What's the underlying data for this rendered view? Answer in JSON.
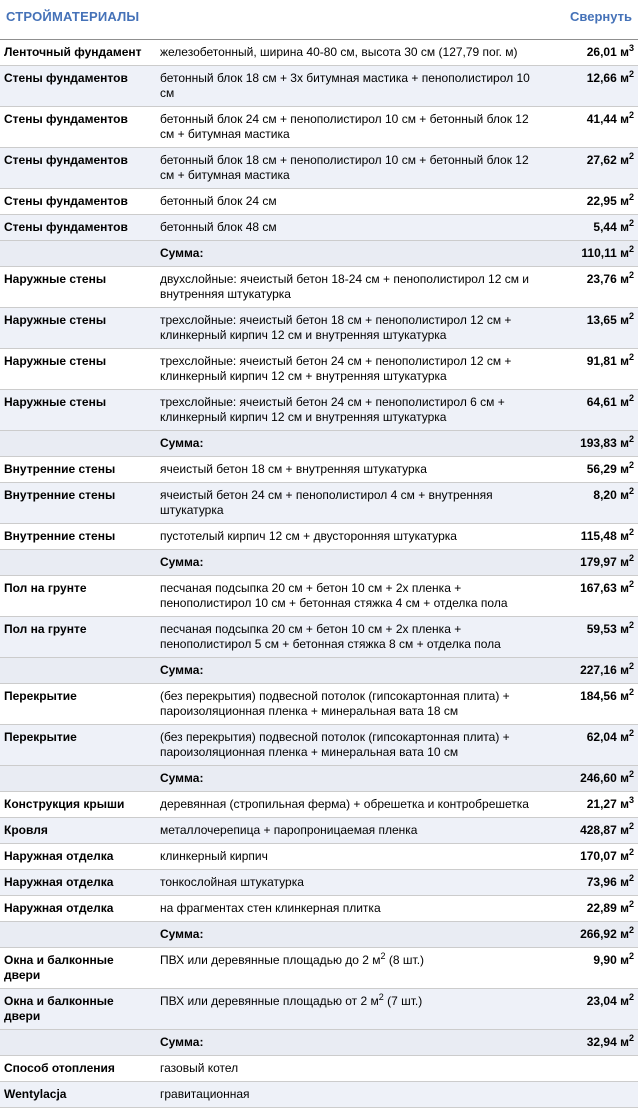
{
  "header": {
    "title": "СТРОЙМАТЕРИАЛЫ",
    "collapse_label": "Свернуть"
  },
  "colors": {
    "accent_blue": "#4572b8",
    "stripe_bg": "#eef1f8",
    "sum_bg": "#e9ecf3",
    "top_border": "#8f8f8f",
    "row_border": "#cccccc"
  },
  "table": {
    "rows": [
      {
        "type": "data",
        "category": "Ленточный фундамент",
        "description": "железобетонный, ширина 40-80 см, высота 30 см (127,79 пог. м)",
        "value": "26,01 м³"
      },
      {
        "type": "data",
        "category": "Стены фундаментов",
        "description": "бетонный блок 18 см + 3х битумная мастика + пенополистирол 10 см",
        "value": "12,66 м²"
      },
      {
        "type": "data",
        "category": "Стены фундаментов",
        "description": "бетонный блок 24 см + пенополистирол 10 см + бетонный блок 12 см + битумная мастика",
        "value": "41,44 м²"
      },
      {
        "type": "data",
        "category": "Стены фундаментов",
        "description": "бетонный блок 18 см + пенополистирол 10 см + бетонный блок 12 см + битумная мастика",
        "value": "27,62 м²"
      },
      {
        "type": "data",
        "category": "Стены фундаментов",
        "description": "бетонный блок 24 см",
        "value": "22,95 м²"
      },
      {
        "type": "data",
        "category": "Стены фундаментов",
        "description": "бетонный блок 48 см",
        "value": "5,44 м²"
      },
      {
        "type": "sum",
        "category": "",
        "description": "Сумма:",
        "value": "110,11 м²"
      },
      {
        "type": "data",
        "category": "Наружные стены",
        "description": "двухслойные: ячеистый бетон 18-24 см + пенополистирол 12 см и внутренняя штукатурка",
        "value": "23,76 м²"
      },
      {
        "type": "data",
        "category": "Наружные стены",
        "description": "трехслойные: ячеистый бетон 18 см + пенополистирол 12 см + клинкерный кирпич 12 см и внутренняя штукатурка",
        "value": "13,65 м²"
      },
      {
        "type": "data",
        "category": "Наружные стены",
        "description": "трехслойные: ячеистый бетон 24 см + пенополистирол 12 см + клинкерный кирпич 12 см + внутренняя штукатурка",
        "value": "91,81 м²"
      },
      {
        "type": "data",
        "category": "Наружные стены",
        "description": "трехслойные: ячеистый бетон 24 см + пенополистирол 6 см + клинкерный кирпич 12 см и внутренняя штукатурка",
        "value": "64,61 м²"
      },
      {
        "type": "sum",
        "category": "",
        "description": "Сумма:",
        "value": "193,83 м²"
      },
      {
        "type": "data",
        "category": "Внутренние стены",
        "description": "ячеистый бетон 18 см + внутренняя штукатурка",
        "value": "56,29 м²"
      },
      {
        "type": "data",
        "category": "Внутренние стены",
        "description": "ячеистый бетон 24 см + пенополистирол 4 см + внутренняя штукатурка",
        "value": "8,20 м²"
      },
      {
        "type": "data",
        "category": "Внутренние стены",
        "description": "пустотелый кирпич 12 см + двусторонняя штукатурка",
        "value": "115,48 м²"
      },
      {
        "type": "sum",
        "category": "",
        "description": "Сумма:",
        "value": "179,97 м²"
      },
      {
        "type": "data",
        "category": "Пол на грунте",
        "description": "песчаная подсыпка 20 см + бетон 10 см + 2х пленка + пенополистирол 10 см + бетонная стяжка 4 см + отделка пола",
        "value": "167,63 м²"
      },
      {
        "type": "data",
        "category": "Пол на грунте",
        "description": "песчаная подсыпка 20 см + бетон 10 см + 2х пленка + пенополистирол 5 см + бетонная стяжка 8 см + отделка пола",
        "value": "59,53 м²"
      },
      {
        "type": "sum",
        "category": "",
        "description": "Сумма:",
        "value": "227,16 м²"
      },
      {
        "type": "data",
        "category": "Перекрытие",
        "description": "(без перекрытия) подвесной потолок (гипсокартонная плита) + пароизоляционная пленка + минеральная вата 18 см",
        "value": "184,56 м²"
      },
      {
        "type": "data",
        "category": "Перекрытие",
        "description": "(без перекрытия) подвесной потолок (гипсокартонная плита) + пароизоляционная пленка + минеральная вата 10 см",
        "value": "62,04 м²"
      },
      {
        "type": "sum",
        "category": "",
        "description": "Сумма:",
        "value": "246,60 м²"
      },
      {
        "type": "data",
        "category": "Конструкция крыши",
        "description": "деревянная (стропильная ферма) + обрешетка и контробрешетка",
        "value": "21,27 м³"
      },
      {
        "type": "data",
        "category": "Кровля",
        "description": "металлочерепица + паропроницаемая пленка",
        "value": "428,87 м²"
      },
      {
        "type": "data",
        "category": "Наружная отделка",
        "description": "клинкерный кирпич",
        "value": "170,07 м²"
      },
      {
        "type": "data",
        "category": "Наружная отделка",
        "description": "тонкослойная штукатурка",
        "value": "73,96 м²"
      },
      {
        "type": "data",
        "category": "Наружная отделка",
        "description": "на фрагментах стен клинкерная плитка",
        "value": "22,89 м²"
      },
      {
        "type": "sum",
        "category": "",
        "description": "Сумма:",
        "value": "266,92 м²"
      },
      {
        "type": "data",
        "category": "Окна и балконные двери",
        "description": "ПВХ или деревянные площадью до 2 м² (8 шт.)",
        "value": "9,90 м²"
      },
      {
        "type": "data",
        "category": "Окна и балконные двери",
        "description": "ПВХ или деревянные площадью от 2 м² (7 шт.)",
        "value": "23,04 м²"
      },
      {
        "type": "sum",
        "category": "",
        "description": "Сумма:",
        "value": "32,94 м²"
      },
      {
        "type": "data",
        "category": "Способ отопления",
        "description": "газовый котел",
        "value": ""
      },
      {
        "type": "data",
        "category": "Wentylacja",
        "description": "гравитационная",
        "value": ""
      }
    ]
  }
}
